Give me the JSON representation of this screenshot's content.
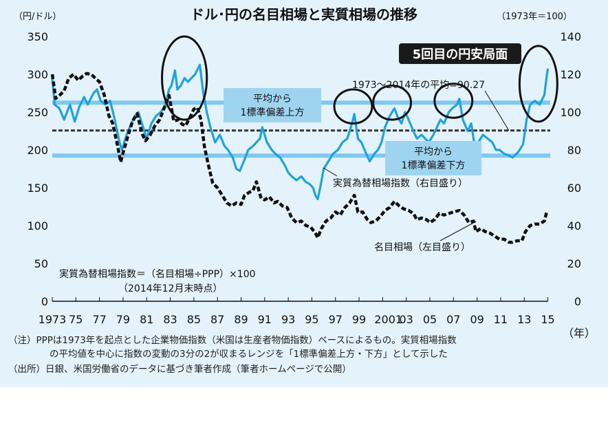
{
  "chart_data": {
    "type": "line",
    "title": "ドル･円の名目相場と実質相場の推移",
    "left_axis": {
      "unit": "（円/ドル）",
      "range": [
        0,
        350
      ],
      "ticks": [
        "0",
        "50",
        "100",
        "150",
        "200",
        "250",
        "300",
        "350"
      ]
    },
    "right_axis": {
      "unit": "（1973年＝100）",
      "range": [
        0,
        140
      ],
      "ticks": [
        "0",
        "20",
        "40",
        "60",
        "80",
        "100",
        "120",
        "140"
      ]
    },
    "x_axis": {
      "range": [
        1973,
        2015.2
      ],
      "unit": "（年）",
      "ticks": [
        "1973",
        "75",
        "77",
        "79",
        "81",
        "83",
        "85",
        "87",
        "89",
        "91",
        "93",
        "95",
        "97",
        "99",
        "2001",
        "03",
        "05",
        "07",
        "09",
        "11",
        "13",
        "15"
      ],
      "tick_years": [
        1973,
        1975,
        1977,
        1979,
        1981,
        1983,
        1985,
        1987,
        1989,
        1991,
        1993,
        1995,
        1997,
        1999,
        2001,
        2003,
        2005,
        2007,
        2009,
        2011,
        2013,
        2015
      ]
    },
    "grid": false,
    "reference_lines": {
      "mean": {
        "value": 90.27,
        "axis": "right",
        "label": "1973～2014年の平均=90.27"
      },
      "upper": {
        "value": 105,
        "axis": "right",
        "label_lines": [
          "平均から",
          "1標準偏差上方"
        ]
      },
      "lower": {
        "value": 77,
        "axis": "right",
        "label_lines": [
          "平均から",
          "1標準偏差下方"
        ]
      }
    },
    "series": [
      {
        "name": "実質為替相場指数（右目盛り）",
        "axis": "right",
        "color": "#1ea3dc",
        "style": "solid",
        "points": [
          [
            1973.0,
            118
          ],
          [
            1973.2,
            104
          ],
          [
            1973.6,
            102
          ],
          [
            1974.0,
            96
          ],
          [
            1974.5,
            104
          ],
          [
            1974.9,
            95
          ],
          [
            1975.3,
            103
          ],
          [
            1975.7,
            108
          ],
          [
            1976.0,
            104
          ],
          [
            1976.5,
            110
          ],
          [
            1976.8,
            112
          ],
          [
            1977.1,
            106
          ],
          [
            1977.5,
            104
          ],
          [
            1977.9,
            106
          ],
          [
            1978.3,
            96
          ],
          [
            1978.7,
            84
          ],
          [
            1978.9,
            80
          ],
          [
            1979.3,
            88
          ],
          [
            1979.7,
            94
          ],
          [
            1980.0,
            98
          ],
          [
            1980.3,
            100
          ],
          [
            1980.7,
            92
          ],
          [
            1981.0,
            86
          ],
          [
            1981.4,
            94
          ],
          [
            1981.8,
            98
          ],
          [
            1982.2,
            100
          ],
          [
            1982.6,
            104
          ],
          [
            1982.9,
            112
          ],
          [
            1983.1,
            114
          ],
          [
            1983.4,
            122
          ],
          [
            1983.6,
            112
          ],
          [
            1983.9,
            114
          ],
          [
            1984.2,
            118
          ],
          [
            1984.5,
            116
          ],
          [
            1984.8,
            118
          ],
          [
            1985.1,
            120
          ],
          [
            1985.5,
            125
          ],
          [
            1985.8,
            110
          ],
          [
            1986.1,
            100
          ],
          [
            1986.4,
            92
          ],
          [
            1986.8,
            84
          ],
          [
            1987.2,
            88
          ],
          [
            1987.6,
            82
          ],
          [
            1987.9,
            80
          ],
          [
            1988.3,
            76
          ],
          [
            1988.6,
            70
          ],
          [
            1988.9,
            69
          ],
          [
            1989.3,
            75
          ],
          [
            1989.6,
            80
          ],
          [
            1990.0,
            82
          ],
          [
            1990.3,
            84
          ],
          [
            1990.6,
            86
          ],
          [
            1990.8,
            92
          ],
          [
            1991.2,
            84
          ],
          [
            1991.6,
            80
          ],
          [
            1991.9,
            78
          ],
          [
            1992.3,
            76
          ],
          [
            1992.7,
            72
          ],
          [
            1993.0,
            68
          ],
          [
            1993.3,
            66
          ],
          [
            1993.7,
            64
          ],
          [
            1994.1,
            66
          ],
          [
            1994.5,
            63
          ],
          [
            1994.8,
            62
          ],
          [
            1995.1,
            60
          ],
          [
            1995.3,
            56
          ],
          [
            1995.5,
            54
          ],
          [
            1995.7,
            60
          ],
          [
            1996.0,
            70
          ],
          [
            1996.4,
            74
          ],
          [
            1996.8,
            78
          ],
          [
            1997.2,
            80
          ],
          [
            1997.6,
            84
          ],
          [
            1998.0,
            86
          ],
          [
            1998.4,
            94
          ],
          [
            1998.6,
            99
          ],
          [
            1998.9,
            86
          ],
          [
            1999.2,
            84
          ],
          [
            1999.6,
            78
          ],
          [
            1999.9,
            74
          ],
          [
            2000.3,
            78
          ],
          [
            2000.6,
            80
          ],
          [
            2000.9,
            84
          ],
          [
            2001.2,
            92
          ],
          [
            2001.6,
            98
          ],
          [
            2002.0,
            102
          ],
          [
            2002.3,
            97
          ],
          [
            2002.6,
            94
          ],
          [
            2002.9,
            100
          ],
          [
            2003.2,
            96
          ],
          [
            2003.6,
            90
          ],
          [
            2003.9,
            86
          ],
          [
            2004.3,
            88
          ],
          [
            2004.6,
            86
          ],
          [
            2004.9,
            84
          ],
          [
            2005.3,
            88
          ],
          [
            2005.6,
            92
          ],
          [
            2005.9,
            96
          ],
          [
            2006.2,
            94
          ],
          [
            2006.6,
            100
          ],
          [
            2006.9,
            102
          ],
          [
            2007.3,
            104
          ],
          [
            2007.5,
            107
          ],
          [
            2007.8,
            96
          ],
          [
            2008.2,
            90
          ],
          [
            2008.5,
            94
          ],
          [
            2008.8,
            82
          ],
          [
            2009.1,
            84
          ],
          [
            2009.5,
            88
          ],
          [
            2009.9,
            86
          ],
          [
            2010.3,
            84
          ],
          [
            2010.6,
            80
          ],
          [
            2010.9,
            80
          ],
          [
            2011.3,
            78
          ],
          [
            2011.7,
            77
          ],
          [
            2012.0,
            76
          ],
          [
            2012.5,
            79
          ],
          [
            2012.9,
            83
          ],
          [
            2013.2,
            96
          ],
          [
            2013.5,
            104
          ],
          [
            2013.9,
            106
          ],
          [
            2014.3,
            104
          ],
          [
            2014.7,
            109
          ],
          [
            2014.9,
            119
          ],
          [
            2015.0,
            123
          ]
        ]
      },
      {
        "name": "名目相場（左目盛り）",
        "axis": "left",
        "color": "#111111",
        "style": "dashed",
        "points": [
          [
            1973.0,
            300
          ],
          [
            1973.3,
            268
          ],
          [
            1973.6,
            272
          ],
          [
            1974.0,
            278
          ],
          [
            1974.4,
            295
          ],
          [
            1974.8,
            300
          ],
          [
            1975.2,
            292
          ],
          [
            1975.6,
            298
          ],
          [
            1975.9,
            301
          ],
          [
            1976.3,
            300
          ],
          [
            1976.7,
            294
          ],
          [
            1977.0,
            290
          ],
          [
            1977.4,
            273
          ],
          [
            1977.8,
            245
          ],
          [
            1978.1,
            236
          ],
          [
            1978.5,
            208
          ],
          [
            1978.8,
            184
          ],
          [
            1979.0,
            196
          ],
          [
            1979.4,
            218
          ],
          [
            1979.8,
            238
          ],
          [
            1980.2,
            248
          ],
          [
            1980.6,
            222
          ],
          [
            1980.9,
            212
          ],
          [
            1981.3,
            220
          ],
          [
            1981.7,
            232
          ],
          [
            1982.1,
            240
          ],
          [
            1982.5,
            256
          ],
          [
            1982.9,
            272
          ],
          [
            1983.3,
            238
          ],
          [
            1983.7,
            240
          ],
          [
            1984.0,
            234
          ],
          [
            1984.3,
            232
          ],
          [
            1984.7,
            244
          ],
          [
            1985.0,
            254
          ],
          [
            1985.3,
            256
          ],
          [
            1985.6,
            240
          ],
          [
            1985.9,
            204
          ],
          [
            1986.2,
            182
          ],
          [
            1986.6,
            156
          ],
          [
            1987.0,
            150
          ],
          [
            1987.4,
            140
          ],
          [
            1987.8,
            130
          ],
          [
            1988.2,
            126
          ],
          [
            1988.6,
            130
          ],
          [
            1989.0,
            128
          ],
          [
            1989.3,
            140
          ],
          [
            1989.7,
            144
          ],
          [
            1990.0,
            146
          ],
          [
            1990.3,
            158
          ],
          [
            1990.7,
            136
          ],
          [
            1991.0,
            134
          ],
          [
            1991.4,
            138
          ],
          [
            1991.8,
            130
          ],
          [
            1992.1,
            132
          ],
          [
            1992.5,
            126
          ],
          [
            1992.9,
            124
          ],
          [
            1993.3,
            110
          ],
          [
            1993.7,
            104
          ],
          [
            1994.1,
            106
          ],
          [
            1994.5,
            100
          ],
          [
            1994.9,
            98
          ],
          [
            1995.3,
            90
          ],
          [
            1995.5,
            84
          ],
          [
            1995.8,
            96
          ],
          [
            1996.2,
            106
          ],
          [
            1996.6,
            110
          ],
          [
            1997.0,
            118
          ],
          [
            1997.4,
            114
          ],
          [
            1997.8,
            124
          ],
          [
            1998.2,
            130
          ],
          [
            1998.6,
            140
          ],
          [
            1998.9,
            118
          ],
          [
            1999.3,
            118
          ],
          [
            1999.7,
            108
          ],
          [
            2000.0,
            104
          ],
          [
            2000.4,
            106
          ],
          [
            2000.8,
            112
          ],
          [
            2001.2,
            120
          ],
          [
            2001.6,
            124
          ],
          [
            2002.0,
            132
          ],
          [
            2002.4,
            126
          ],
          [
            2002.8,
            122
          ],
          [
            2003.2,
            120
          ],
          [
            2003.6,
            116
          ],
          [
            2003.9,
            108
          ],
          [
            2004.3,
            110
          ],
          [
            2004.7,
            108
          ],
          [
            2005.0,
            104
          ],
          [
            2005.4,
            108
          ],
          [
            2005.8,
            116
          ],
          [
            2006.2,
            114
          ],
          [
            2006.6,
            116
          ],
          [
            2007.0,
            118
          ],
          [
            2007.5,
            120
          ],
          [
            2007.9,
            114
          ],
          [
            2008.3,
            104
          ],
          [
            2008.7,
            106
          ],
          [
            2008.9,
            92
          ],
          [
            2009.3,
            96
          ],
          [
            2009.7,
            92
          ],
          [
            2010.1,
            90
          ],
          [
            2010.5,
            86
          ],
          [
            2010.9,
            82
          ],
          [
            2011.3,
            82
          ],
          [
            2011.7,
            78
          ],
          [
            2012.0,
            78
          ],
          [
            2012.4,
            80
          ],
          [
            2012.8,
            80
          ],
          [
            2013.1,
            92
          ],
          [
            2013.5,
            100
          ],
          [
            2013.9,
            102
          ],
          [
            2014.3,
            102
          ],
          [
            2014.7,
            106
          ],
          [
            2014.9,
            118
          ]
        ]
      }
    ],
    "annotations": {
      "highlight": "5回目の円安局面",
      "ellipses": [
        {
          "cx": 1984.2,
          "cy_right": 118,
          "rx_years": 1.9,
          "ry_units": 22
        },
        {
          "cx": 1998.5,
          "cy_right": 103,
          "rx_years": 1.6,
          "ry_units": 9
        },
        {
          "cx": 2001.8,
          "cy_right": 105,
          "rx_years": 1.6,
          "ry_units": 9
        },
        {
          "cx": 2007.0,
          "cy_right": 106,
          "rx_years": 1.6,
          "ry_units": 9
        },
        {
          "cx": 2014.2,
          "cy_right": 115,
          "rx_years": 1.6,
          "ry_units": 20
        }
      ]
    },
    "formula_lines": [
      "実質為替相場指数＝（名目相場÷PPP）×100",
      "（2014年12月末時点）"
    ],
    "notes": [
      "（注）PPPは1973年を起点とした企業物価指数（米国は生産者物価指数）ベースによるもの。実質相場指数",
      "の平均値を中心に指数の変動の3分の2が収まるレンジを「1標準偏差上方・下方」として示した",
      "（出所）日銀、米国労働省のデータに基づき筆者作成（筆者ホームページで公開）"
    ]
  }
}
